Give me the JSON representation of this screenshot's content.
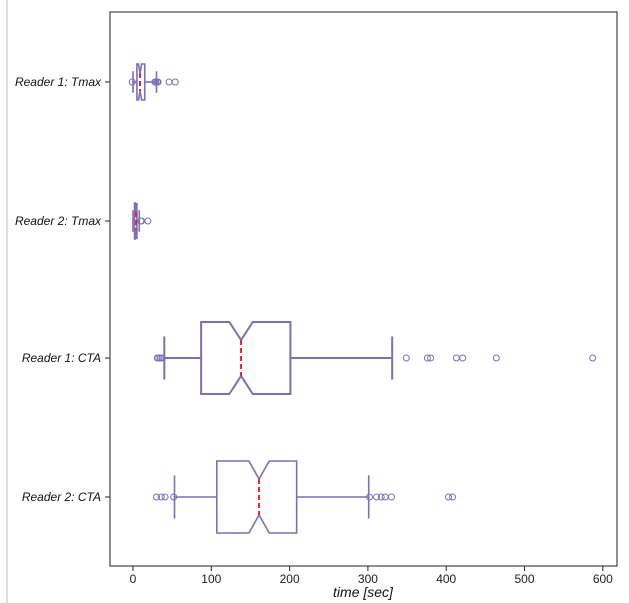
{
  "chart_data": {
    "type": "box",
    "orientation": "horizontal",
    "xlabel": "time [sec]",
    "ylabel": "",
    "xlim": [
      -30,
      615
    ],
    "xticks": [
      0,
      100,
      200,
      300,
      400,
      500,
      600
    ],
    "xtick_labels": [
      "0",
      "100",
      "200",
      "300",
      "400",
      "500",
      "600"
    ],
    "grid": false,
    "colors": {
      "box": "#7a70b8",
      "median": "#e8232a",
      "frame": "#222222"
    },
    "series": [
      {
        "name": "Reader 1: Tmax",
        "q1": 5,
        "median": 9,
        "q3": 15,
        "notch_low": 7,
        "notch_high": 11,
        "whisker_low": 0,
        "whisker_high": 30,
        "outliers": [
          -1,
          28,
          29,
          31,
          32,
          46,
          54
        ]
      },
      {
        "name": "Reader 2: Tmax",
        "q1": 2,
        "median": 4,
        "q3": 5,
        "notch_low": 3,
        "notch_high": 5,
        "whisker_low": 0,
        "whisker_high": 8,
        "outliers": [
          10,
          11,
          19
        ]
      },
      {
        "name": "Reader 1: CTA",
        "q1": 87,
        "median": 138,
        "q3": 201,
        "notch_low": 123,
        "notch_high": 153,
        "whisker_low": 40,
        "whisker_high": 331,
        "outliers": [
          31,
          33,
          35,
          37,
          349,
          376,
          380,
          413,
          421,
          464,
          587
        ]
      },
      {
        "name": "Reader 2: CTA",
        "q1": 107,
        "median": 161,
        "q3": 209,
        "notch_low": 148,
        "notch_high": 174,
        "whisker_low": 53,
        "whisker_high": 301,
        "outliers": [
          30,
          36,
          41,
          52,
          302,
          311,
          317,
          322,
          330,
          403,
          408
        ]
      }
    ]
  }
}
